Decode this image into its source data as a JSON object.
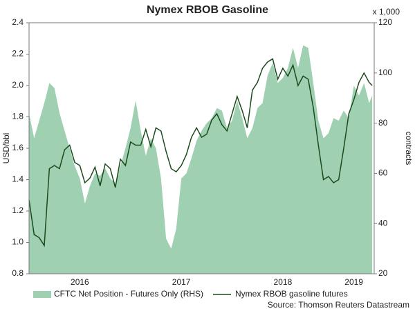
{
  "chart_data": {
    "type": "area-line",
    "title": "Nymex RBOB Gasoline",
    "y_label": "USD/bbl",
    "y2_label": "contracts",
    "y2_unit": "x 1,000",
    "source": "Source: Thomson Reuters Datastream",
    "x": [
      2016.0,
      2016.05,
      2016.1,
      2016.15,
      2016.2,
      2016.25,
      2016.3,
      2016.35,
      2016.4,
      2016.45,
      2016.5,
      2016.55,
      2016.6,
      2016.65,
      2016.7,
      2016.75,
      2016.8,
      2016.85,
      2016.9,
      2016.95,
      2017.0,
      2017.05,
      2017.1,
      2017.15,
      2017.2,
      2017.25,
      2017.3,
      2017.35,
      2017.4,
      2017.45,
      2017.5,
      2017.55,
      2017.6,
      2017.65,
      2017.7,
      2017.75,
      2017.8,
      2017.85,
      2017.9,
      2017.95,
      2018.0,
      2018.05,
      2018.1,
      2018.15,
      2018.2,
      2018.25,
      2018.3,
      2018.35,
      2018.4,
      2018.45,
      2018.5,
      2018.55,
      2018.6,
      2018.65,
      2018.7,
      2018.75,
      2018.8,
      2018.85,
      2018.9,
      2018.95,
      2019.0,
      2019.05,
      2019.1,
      2019.15,
      2019.2,
      2019.25,
      2019.3,
      2019.35,
      2019.38
    ],
    "series": [
      {
        "name": "CFTC Net Position - Futures Only (RHS)",
        "color": "#9fd0b2",
        "axis": "y2",
        "values": [
          84,
          74,
          81,
          88,
          96,
          94,
          84,
          77,
          70,
          63,
          58,
          48,
          55,
          60,
          59,
          62,
          58,
          56,
          63,
          70,
          78,
          89,
          77,
          67,
          74,
          70,
          58,
          34,
          30,
          38,
          58,
          60,
          66,
          73,
          77,
          80,
          82,
          86,
          85,
          78,
          81,
          89,
          82,
          74,
          78,
          86,
          88,
          99,
          104,
          96,
          98,
          102,
          110,
          102,
          111,
          110,
          96,
          81,
          74,
          76,
          82,
          81,
          85,
          82,
          95,
          91,
          96,
          88,
          91
        ]
      },
      {
        "name": "Nymex RBOB gasoline futures",
        "color": "#1c4a1c",
        "values": [
          1.27,
          1.05,
          1.03,
          0.98,
          1.47,
          1.49,
          1.47,
          1.59,
          1.62,
          1.51,
          1.49,
          1.38,
          1.41,
          1.48,
          1.36,
          1.5,
          1.47,
          1.35,
          1.53,
          1.49,
          1.64,
          1.62,
          1.62,
          1.72,
          1.61,
          1.73,
          1.71,
          1.58,
          1.47,
          1.45,
          1.49,
          1.56,
          1.67,
          1.73,
          1.67,
          1.69,
          1.78,
          1.82,
          1.75,
          1.71,
          1.82,
          1.93,
          1.84,
          1.73,
          1.97,
          2.02,
          2.11,
          2.15,
          2.17,
          2.04,
          2.11,
          2.06,
          2.13,
          2.0,
          2.06,
          2.04,
          1.86,
          1.62,
          1.4,
          1.42,
          1.38,
          1.4,
          1.6,
          1.82,
          1.91,
          2.02,
          2.08,
          2.02,
          2.0
        ]
      }
    ],
    "xlim": [
      2016,
      2019.4
    ],
    "xticks": [
      {
        "value": 2016.5,
        "label": "2016"
      },
      {
        "value": 2017.5,
        "label": "2017"
      },
      {
        "value": 2018.5,
        "label": "2018"
      },
      {
        "value": 2019.2,
        "label": "2019"
      }
    ],
    "ylim": [
      0.8,
      2.4
    ],
    "yticks": [
      0.8,
      {
        "value": 1,
        "label": "1.0"
      },
      1.2,
      1.4,
      1.6,
      1.8,
      {
        "value": 2,
        "label": "2.0"
      },
      2.2,
      2.4
    ],
    "y2lim": [
      20,
      120
    ],
    "y2ticks": [
      20,
      40,
      60,
      80,
      100,
      120
    ]
  }
}
